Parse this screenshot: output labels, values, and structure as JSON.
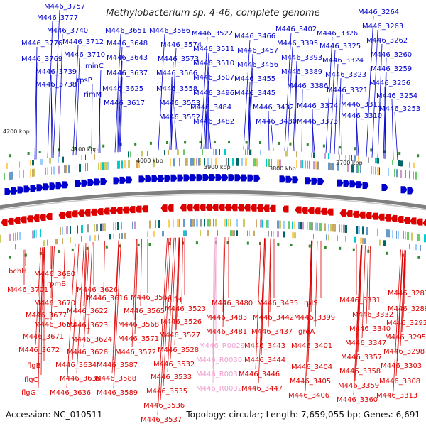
{
  "title": "Methylobacterium sp. 4-46, complete genome",
  "footer": {
    "accession": "Accession: NC_010511",
    "summary": "Topology: circular; Length: 7,659,055 bp; Genes: 6,691"
  },
  "scale_labels": [
    "4200 kbp",
    "4100 kbp",
    "4000 kbp",
    "3900 kbp",
    "3800 kbp",
    "3700 kbp"
  ],
  "colors": {
    "forward": "#0000cc",
    "reverse": "#dd0000",
    "rna": "#f0a0d0",
    "backbone": "#808080",
    "tick": "#2e8b2e"
  },
  "top_labels": [
    "M446_3757",
    "M446_3777",
    "M446_3740",
    "M446_3776",
    "M446_3769",
    "M446_3739",
    "M446_3738",
    "M446_3712",
    "M446_3710",
    "minC",
    "rpsP",
    "rimM",
    "M446_3651",
    "M446_3648",
    "M446_3643",
    "M446_3637",
    "M446_3625",
    "M446_3617",
    "M446_3586",
    "M446_3574",
    "M446_3573",
    "M446_3566",
    "M446_3558",
    "M446_3553",
    "M446_3552",
    "M446_3522",
    "M446_3511",
    "M446_3510",
    "M446_3507",
    "M446_3496",
    "M446_3484",
    "M446_3482",
    "M446_3466",
    "M446_3457",
    "M446_3456",
    "M446_3455",
    "M446_3445",
    "M446_3432",
    "M446_3430",
    "M446_3402",
    "M446_3395",
    "M446_3393",
    "M446_3389",
    "M446_3386",
    "M446_3374",
    "M446_3373",
    "M446_3326",
    "M446_3325",
    "M446_3324",
    "M446_3323",
    "M446_3321",
    "M446_3311",
    "M446_3310",
    "M446_3264",
    "M446_3263",
    "M446_3262",
    "M446_3260",
    "M446_3259",
    "M446_3256",
    "M446_3254",
    "M446_3253"
  ],
  "bottom_labels": [
    "bchH",
    "M446_3680",
    "rpmB",
    "M446_3701",
    "M446_3670",
    "M446_3677",
    "M446_3668",
    "M446_3671",
    "M446_3672",
    "flgB",
    "flgC",
    "flgG",
    "M446_3626",
    "M446_3616",
    "M446_3622",
    "M446_3623",
    "M446_3624",
    "M446_3628",
    "M446_3634",
    "M446_3635",
    "M446_3636",
    "M446_3564",
    "M446_3565",
    "M446_3568",
    "M446_3571",
    "M446_3572",
    "M446_3587",
    "M446_3588",
    "M446_3589",
    "nifH",
    "M446_3523",
    "M446_3526",
    "M446_3527",
    "M446_3528",
    "M446_3532",
    "M446_3533",
    "M446_3535",
    "M446_3536",
    "M446_3537",
    "M446_3480",
    "M446_3483",
    "M446_3481",
    "M446_R0029",
    "M446_R0030",
    "M446_R0031",
    "M446_R0032",
    "M446_3435",
    "M446_3442",
    "M446_3437",
    "M446_3443",
    "M446_3444",
    "M446_3446",
    "M446_3447",
    "rplS",
    "M446_3399",
    "greA",
    "M446_3401",
    "M446_3404",
    "M446_3405",
    "M446_3406",
    "M446_3331",
    "M446_3332",
    "M446_3340",
    "M446_3347",
    "M446_3357",
    "M446_3358",
    "M446_3359",
    "M446_3360",
    "M446_3287",
    "M446_3289",
    "M446_3292",
    "M446_3295",
    "M446_3298",
    "M446_3303",
    "M446_3308",
    "M446_3313"
  ]
}
